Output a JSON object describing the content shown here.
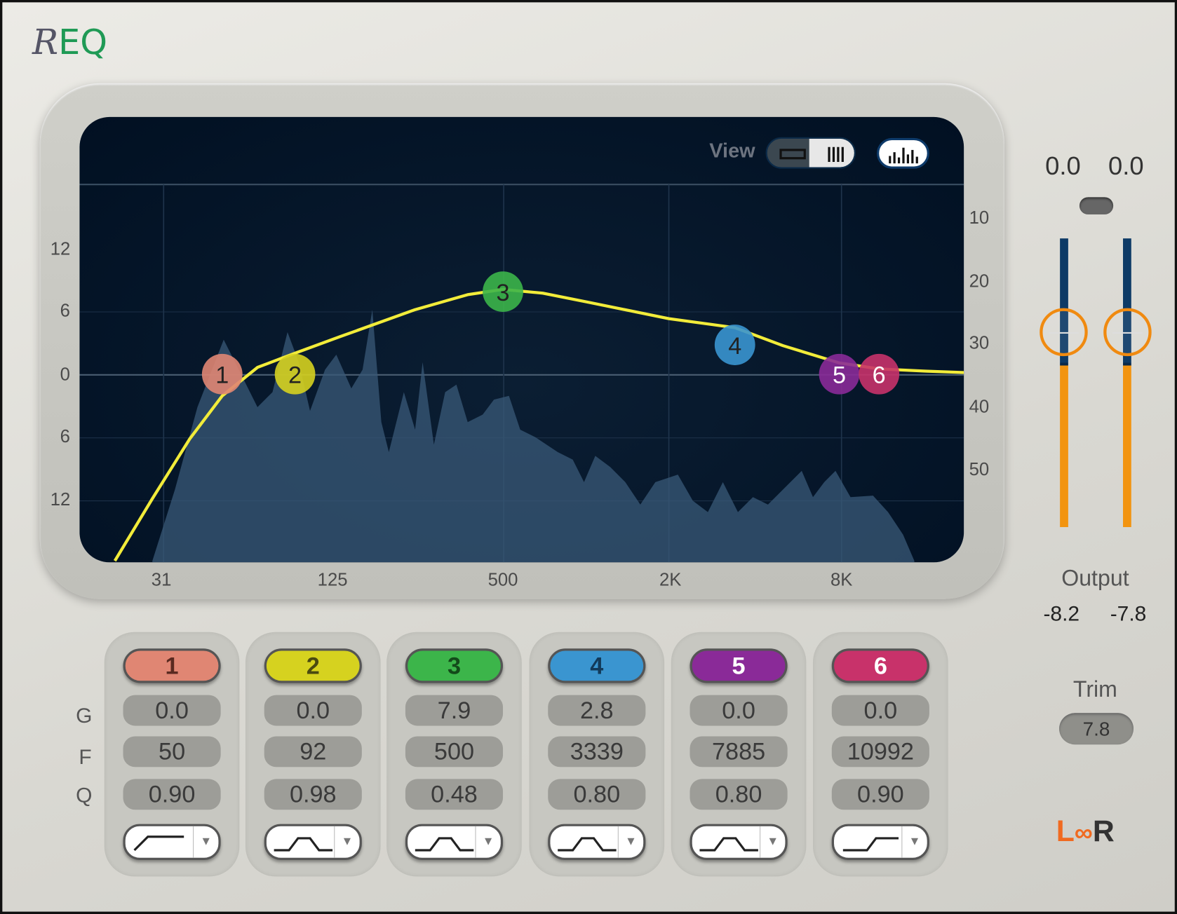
{
  "app": {
    "logo": "REQ",
    "logo_script": "R",
    "logo_rest": "EQ"
  },
  "view": {
    "label": "View",
    "mode_options": [
      "line-view-icon",
      "bars-view-icon"
    ],
    "selected_mode": "bars-view-icon",
    "spectrum_icon": "spectrum-icon"
  },
  "axes": {
    "freq_labels": [
      "31",
      "125",
      "500",
      "2K",
      "8K"
    ],
    "gain_labels": [
      "12",
      "6",
      "0",
      "6",
      "12"
    ],
    "level_labels": [
      "10",
      "20",
      "30",
      "40",
      "50"
    ]
  },
  "meters": {
    "peak_left": "0.0",
    "peak_right": "0.0",
    "output_label": "Output",
    "output_left": "-8.2",
    "output_right": "-7.8",
    "fill_colors": [
      "#0d3a66",
      "#f29410"
    ]
  },
  "trim": {
    "label": "Trim",
    "value": "7.8"
  },
  "link": {
    "left": "L",
    "right": "R",
    "color": "#f06a20"
  },
  "rows": {
    "gain": "G",
    "freq": "F",
    "q": "Q"
  },
  "bands": [
    {
      "num": "1",
      "gain": "0.0",
      "freq": "50",
      "q": "0.90",
      "shape": "high-pass",
      "color": "#e08673",
      "text": "#5a2a20"
    },
    {
      "num": "2",
      "gain": "0.0",
      "freq": "92",
      "q": "0.98",
      "shape": "bell",
      "color": "#d6d21f",
      "text": "#4a4a10"
    },
    {
      "num": "3",
      "gain": "7.9",
      "freq": "500",
      "q": "0.48",
      "shape": "bell",
      "color": "#3cb54a",
      "text": "#134a1a"
    },
    {
      "num": "4",
      "gain": "2.8",
      "freq": "3339",
      "q": "0.80",
      "shape": "bell",
      "color": "#3a95d0",
      "text": "#123a5a"
    },
    {
      "num": "5",
      "gain": "0.0",
      "freq": "7885",
      "q": "0.80",
      "shape": "bell",
      "color": "#8a2a98",
      "text": "#ffffff"
    },
    {
      "num": "6",
      "gain": "0.0",
      "freq": "10992",
      "q": "0.90",
      "shape": "high-shelf",
      "color": "#c8326a",
      "text": "#ffffff"
    }
  ]
}
